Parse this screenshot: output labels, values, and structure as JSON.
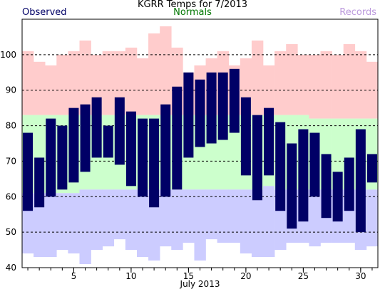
{
  "chart_data": {
    "type": "bar",
    "title": "KGRR Temps for 7/2013",
    "xlabel": "July 2013",
    "ylabel": "",
    "ylim": [
      40,
      110
    ],
    "xlim": [
      0.5,
      31.5
    ],
    "yticks": [
      40,
      50,
      60,
      70,
      80,
      90,
      100
    ],
    "xticks": [
      5,
      10,
      15,
      20,
      25,
      30
    ],
    "grid": "dashed horizontal at 50, 60, 70, 80, 90, 100",
    "legend": [
      {
        "name": "Observed",
        "color": "#000066",
        "position": "top-left"
      },
      {
        "name": "Normals",
        "color": "#007700",
        "position": "top-center"
      },
      {
        "name": "Records",
        "color": "#bb99dd",
        "position": "top-right"
      }
    ],
    "days": [
      1,
      2,
      3,
      4,
      5,
      6,
      7,
      8,
      9,
      10,
      11,
      12,
      13,
      14,
      15,
      16,
      17,
      18,
      19,
      20,
      21,
      22,
      23,
      24,
      25,
      26,
      27,
      28,
      29,
      30,
      31
    ],
    "observed_high": [
      78,
      71,
      82,
      80,
      85,
      86,
      88,
      80,
      88,
      84,
      82,
      82,
      86,
      91,
      95,
      93,
      95,
      95,
      96,
      88,
      83,
      85,
      81,
      75,
      79,
      78,
      72,
      67,
      71,
      79,
      72
    ],
    "observed_low": [
      56,
      57,
      60,
      62,
      64,
      67,
      71,
      71,
      69,
      63,
      60,
      57,
      60,
      62,
      71,
      74,
      75,
      76,
      78,
      66,
      59,
      66,
      56,
      51,
      53,
      60,
      54,
      53,
      56,
      50,
      64
    ],
    "normal_high": [
      83,
      83,
      83,
      83,
      83,
      83,
      83,
      83,
      83,
      83,
      83,
      83,
      83,
      83,
      83,
      83,
      83,
      83,
      83,
      83,
      83,
      83,
      83,
      83,
      83,
      82,
      82,
      82,
      82,
      82,
      82
    ],
    "normal_low": [
      61,
      61,
      61,
      61,
      61,
      62,
      62,
      62,
      62,
      62,
      62,
      62,
      62,
      62,
      62,
      62,
      62,
      62,
      62,
      62,
      62,
      63,
      62,
      62,
      62,
      62,
      62,
      62,
      62,
      62,
      62
    ],
    "record_high": [
      101,
      98,
      97,
      100,
      101,
      104,
      100,
      101,
      101,
      102,
      99,
      106,
      108,
      102,
      95,
      97,
      99,
      101,
      97,
      99,
      104,
      97,
      101,
      103,
      100,
      100,
      101,
      100,
      103,
      101,
      98
    ],
    "record_low": [
      44,
      43,
      43,
      45,
      44,
      41,
      45,
      46,
      48,
      45,
      43,
      42,
      46,
      45,
      47,
      42,
      48,
      47,
      47,
      44,
      43,
      43,
      45,
      47,
      47,
      46,
      47,
      47,
      47,
      45,
      46
    ]
  },
  "colors": {
    "observed": "#000066",
    "normals": "#ccffcc",
    "records_high": "#ffcccc",
    "records_low": "#ccccff",
    "legend_normals": "#007700",
    "legend_records": "#bb99dd"
  }
}
